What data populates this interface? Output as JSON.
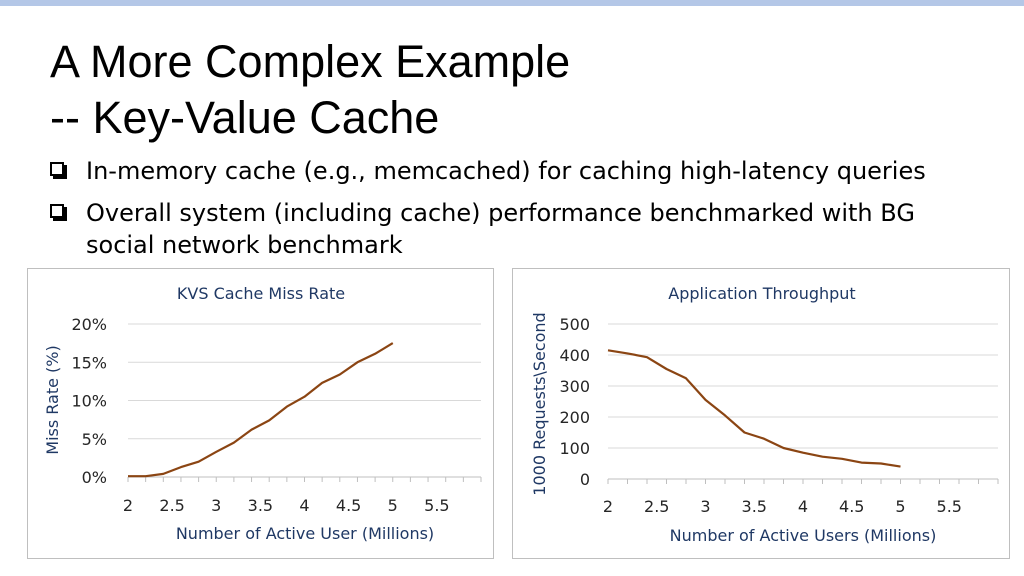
{
  "slide": {
    "title_line1": "A More Complex Example",
    "title_line2": "-- Key-Value Cache",
    "bullets": [
      "In-memory cache (e.g., memcached) for caching high-latency queries",
      "Overall system (including cache) performance benchmarked with BG social network benchmark"
    ],
    "colors": {
      "accent_bar": "#b4c7e7",
      "series_line": "#8b4513",
      "grid": "#d9d9d9"
    }
  },
  "chart_data": [
    {
      "type": "line",
      "title": "KVS Cache Miss Rate",
      "xlabel": "Number of Active User (Millions)",
      "ylabel": "Miss Rate (%)",
      "x_ticks": [
        "2",
        "2.5",
        "3",
        "3.5",
        "4",
        "4.5",
        "5",
        "5.5"
      ],
      "y_ticks": [
        "0%",
        "5%",
        "10%",
        "15%",
        "20%"
      ],
      "ylim": [
        0,
        20
      ],
      "grid": true,
      "series": [
        {
          "x": [
            2,
            2.2,
            2.4,
            2.6,
            2.8,
            3,
            3.2,
            3.4,
            3.6,
            3.8,
            4,
            4.2,
            4.4,
            4.6,
            4.8,
            5,
            5.2,
            5.4,
            5.6
          ],
          "values": [
            0.1,
            0.1,
            0.4,
            1.3,
            2.0,
            3.3,
            4.5,
            6.2,
            7.4,
            9.2,
            10.5,
            12.3,
            13.4,
            15.0,
            16.1,
            17.5,
            null,
            null,
            null
          ]
        }
      ]
    },
    {
      "type": "line",
      "title": "Application Throughput",
      "xlabel": "Number of Active Users (Millions)",
      "ylabel": "1000 Requests\\Second",
      "x_ticks": [
        "2",
        "2.5",
        "3",
        "3.5",
        "4",
        "4.5",
        "5",
        "5.5"
      ],
      "y_ticks": [
        "0",
        "100",
        "200",
        "300",
        "400",
        "500"
      ],
      "ylim": [
        0,
        500
      ],
      "grid": true,
      "series": [
        {
          "x": [
            2,
            2.2,
            2.4,
            2.6,
            2.8,
            3,
            3.2,
            3.4,
            3.6,
            3.8,
            4,
            4.2,
            4.4,
            4.6,
            4.8,
            5,
            5.2,
            5.4,
            5.6
          ],
          "values": [
            415,
            405,
            393,
            355,
            325,
            255,
            205,
            150,
            130,
            100,
            85,
            72,
            65,
            53,
            50,
            40,
            null,
            null,
            null
          ]
        }
      ]
    }
  ]
}
